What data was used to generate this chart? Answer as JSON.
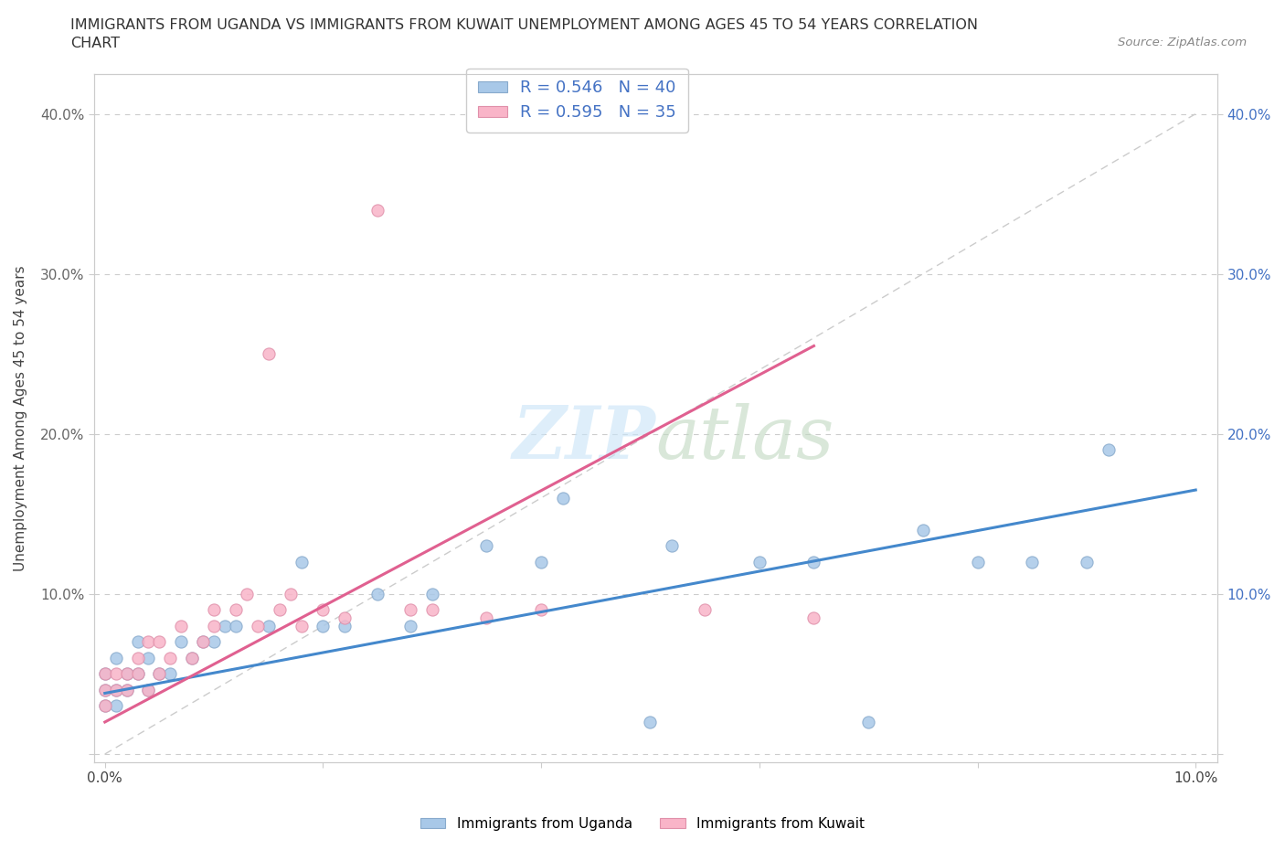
{
  "title_line1": "IMMIGRANTS FROM UGANDA VS IMMIGRANTS FROM KUWAIT UNEMPLOYMENT AMONG AGES 45 TO 54 YEARS CORRELATION",
  "title_line2": "CHART",
  "source_text": "Source: ZipAtlas.com",
  "ylabel": "Unemployment Among Ages 45 to 54 years",
  "xlim": [
    -0.001,
    0.102
  ],
  "ylim": [
    -0.005,
    0.425
  ],
  "uganda_color": "#a8c8e8",
  "kuwait_color": "#f9b4c8",
  "uganda_edge": "#88aacc",
  "kuwait_edge": "#e090aa",
  "bg_color": "#ffffff",
  "grid_color": "#cccccc",
  "diagonal_color": "#cccccc",
  "line_color_uganda": "#4488cc",
  "line_color_kuwait": "#e06090",
  "xtick_positions": [
    0.0,
    0.02,
    0.04,
    0.06,
    0.08,
    0.1
  ],
  "xtick_labels": [
    "0.0%",
    "",
    "",
    "",
    "",
    "10.0%"
  ],
  "ytick_positions": [
    0.0,
    0.1,
    0.2,
    0.3,
    0.4
  ],
  "ytick_labels_left": [
    "",
    "10.0%",
    "20.0%",
    "30.0%",
    "40.0%"
  ],
  "ytick_labels_right": [
    "",
    "10.0%",
    "20.0%",
    "30.0%",
    "40.0%"
  ],
  "legend_r1": "R = 0.546",
  "legend_n1": "N = 40",
  "legend_r2": "R = 0.595",
  "legend_n2": "N = 35",
  "bottom_legend1": "Immigrants from Uganda",
  "bottom_legend2": "Immigrants from Kuwait",
  "uganda_x": [
    0.0,
    0.0,
    0.0,
    0.001,
    0.001,
    0.001,
    0.002,
    0.002,
    0.003,
    0.003,
    0.004,
    0.004,
    0.005,
    0.006,
    0.007,
    0.008,
    0.009,
    0.01,
    0.011,
    0.012,
    0.015,
    0.018,
    0.02,
    0.022,
    0.025,
    0.028,
    0.03,
    0.035,
    0.04,
    0.042,
    0.05,
    0.052,
    0.06,
    0.065,
    0.07,
    0.075,
    0.08,
    0.085,
    0.09,
    0.092
  ],
  "uganda_y": [
    0.03,
    0.04,
    0.05,
    0.03,
    0.04,
    0.06,
    0.04,
    0.05,
    0.05,
    0.07,
    0.04,
    0.06,
    0.05,
    0.05,
    0.07,
    0.06,
    0.07,
    0.07,
    0.08,
    0.08,
    0.08,
    0.12,
    0.08,
    0.08,
    0.1,
    0.08,
    0.1,
    0.13,
    0.12,
    0.16,
    0.02,
    0.13,
    0.12,
    0.12,
    0.02,
    0.14,
    0.12,
    0.12,
    0.12,
    0.19
  ],
  "kuwait_x": [
    0.0,
    0.0,
    0.0,
    0.001,
    0.001,
    0.002,
    0.002,
    0.003,
    0.003,
    0.004,
    0.004,
    0.005,
    0.005,
    0.006,
    0.007,
    0.008,
    0.009,
    0.01,
    0.01,
    0.012,
    0.013,
    0.014,
    0.015,
    0.016,
    0.017,
    0.018,
    0.02,
    0.022,
    0.025,
    0.028,
    0.03,
    0.035,
    0.04,
    0.055,
    0.065
  ],
  "kuwait_y": [
    0.03,
    0.04,
    0.05,
    0.04,
    0.05,
    0.04,
    0.05,
    0.05,
    0.06,
    0.04,
    0.07,
    0.05,
    0.07,
    0.06,
    0.08,
    0.06,
    0.07,
    0.08,
    0.09,
    0.09,
    0.1,
    0.08,
    0.25,
    0.09,
    0.1,
    0.08,
    0.09,
    0.085,
    0.34,
    0.09,
    0.09,
    0.085,
    0.09,
    0.09,
    0.085
  ],
  "uganda_line_x": [
    0.0,
    0.1
  ],
  "uganda_line_y": [
    0.038,
    0.165
  ],
  "kuwait_line_x": [
    0.0,
    0.065
  ],
  "kuwait_line_y": [
    0.02,
    0.255
  ]
}
